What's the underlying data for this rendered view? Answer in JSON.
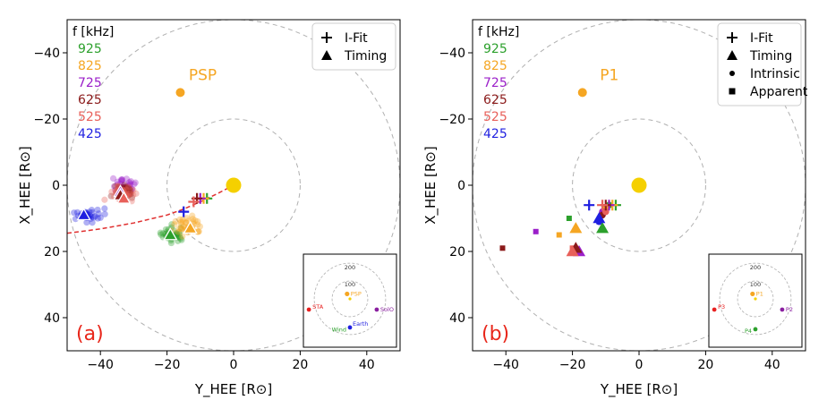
{
  "colors": {
    "f925": "#2ca02c",
    "f825": "#f5a623",
    "f725": "#9b1fc9",
    "f625": "#8b1a1a",
    "f525": "#e8605a",
    "f425": "#1f1fe0",
    "sun": "#f5d000",
    "spacecraft": "#f5a623",
    "fit_line": "#e03030",
    "circle": "#b0b0b0"
  },
  "panels": [
    {
      "panel_label": "(a)",
      "legend": [
        "I-Fit",
        "Timing"
      ],
      "freq_title": "f [kHz]",
      "freq_labels": [
        "925",
        "825",
        "725",
        "625",
        "525",
        "425"
      ],
      "spacecraft_label": "PSP",
      "inset_labels": [
        "200",
        "100",
        "PSP",
        "STA",
        "SolO",
        "Earth",
        "Wind"
      ]
    },
    {
      "panel_label": "(b)",
      "legend": [
        "I-Fit",
        "Timing",
        "Intrinsic",
        "Apparent"
      ],
      "freq_title": "f [kHz]",
      "freq_labels": [
        "925",
        "825",
        "725",
        "625",
        "525",
        "425"
      ],
      "spacecraft_label": "P1",
      "inset_labels": [
        "200",
        "100",
        "P1",
        "P3",
        "P2",
        "P4"
      ]
    }
  ],
  "chart_data": [
    {
      "type": "scatter",
      "title": "",
      "xlabel": "Y_HEE [R⊙]",
      "ylabel": "X_HEE [R⊙]",
      "xlim": [
        -50,
        50
      ],
      "ylim": [
        -50,
        50
      ],
      "y_inverted": true,
      "xticks": [
        -40,
        -20,
        0,
        20,
        40
      ],
      "yticks": [
        -40,
        -20,
        0,
        20,
        40
      ],
      "sun": {
        "x": 0,
        "y": 0
      },
      "spacecraft": {
        "name": "PSP",
        "x": -16,
        "y": -28
      },
      "ifit": [
        {
          "f": 925,
          "x": -8,
          "y": 4
        },
        {
          "f": 825,
          "x": -9,
          "y": 4
        },
        {
          "f": 725,
          "x": -10,
          "y": 4
        },
        {
          "f": 625,
          "x": -11,
          "y": 4
        },
        {
          "f": 525,
          "x": -12,
          "y": 5
        },
        {
          "f": 425,
          "x": -15,
          "y": 8
        }
      ],
      "timing": [
        {
          "f": 925,
          "x": -19,
          "y": 15
        },
        {
          "f": 825,
          "x": -13,
          "y": 13
        },
        {
          "f": 725,
          "x": -34,
          "y": 2
        },
        {
          "f": 625,
          "x": -34,
          "y": 3
        },
        {
          "f": 525,
          "x": -33,
          "y": 4
        },
        {
          "f": 425,
          "x": -45,
          "y": 9
        }
      ],
      "scatter_clouds": [
        {
          "f": 925,
          "cx": -18,
          "cy": 15,
          "sx": 3.5,
          "sy": 2.2
        },
        {
          "f": 825,
          "cx": -14,
          "cy": 12,
          "sx": 4,
          "sy": 2.5
        },
        {
          "f": 725,
          "cx": -33,
          "cy": 0,
          "sx": 3,
          "sy": 2.5
        },
        {
          "f": 625,
          "cx": -33,
          "cy": 2,
          "sx": 3,
          "sy": 2.2
        },
        {
          "f": 525,
          "cx": -33,
          "cy": 3,
          "sx": 3,
          "sy": 2.2
        },
        {
          "f": 425,
          "cx": -44,
          "cy": 9,
          "sx": 3.5,
          "sy": 1.8
        }
      ],
      "fit_curve": [
        [
          -50,
          14.5
        ],
        [
          -40,
          13.2
        ],
        [
          -30,
          11.4
        ],
        [
          -20,
          9
        ],
        [
          -15,
          7.2
        ],
        [
          -10,
          5
        ],
        [
          -5,
          2.6
        ],
        [
          0,
          0
        ]
      ],
      "circles": [
        {
          "cx": 0,
          "cy": 0,
          "r": 50
        },
        {
          "cx": 0,
          "cy": 0,
          "r": 20
        }
      ],
      "inset": {
        "circles": [
          200,
          100
        ],
        "points": [
          {
            "name": "PSP",
            "x": -16,
            "y": -28
          },
          {
            "name": "STA",
            "x": -230,
            "y": 60
          },
          {
            "name": "SolO",
            "x": 150,
            "y": 60
          },
          {
            "name": "Earth",
            "x": 0,
            "y": 160
          },
          {
            "name": "Wind",
            "x": 0,
            "y": 162
          }
        ]
      }
    },
    {
      "type": "scatter",
      "title": "",
      "xlabel": "Y_HEE [R⊙]",
      "ylabel": "X_HEE [R⊙]",
      "xlim": [
        -50,
        50
      ],
      "ylim": [
        -50,
        50
      ],
      "y_inverted": true,
      "xticks": [
        -40,
        -20,
        0,
        20,
        40
      ],
      "yticks": [
        -40,
        -20,
        0,
        20,
        40
      ],
      "sun": {
        "x": 0,
        "y": 0
      },
      "spacecraft": {
        "name": "P1",
        "x": -17,
        "y": -28
      },
      "ifit": [
        {
          "f": 925,
          "x": -7,
          "y": 6
        },
        {
          "f": 825,
          "x": -8,
          "y": 6
        },
        {
          "f": 725,
          "x": -9,
          "y": 6
        },
        {
          "f": 625,
          "x": -10,
          "y": 6
        },
        {
          "f": 525,
          "x": -11,
          "y": 6
        },
        {
          "f": 425,
          "x": -15,
          "y": 6
        }
      ],
      "timing": [
        {
          "f": 925,
          "x": -11,
          "y": 13
        },
        {
          "f": 825,
          "x": -19,
          "y": 13
        },
        {
          "f": 725,
          "x": -18,
          "y": 20
        },
        {
          "f": 625,
          "x": -19,
          "y": 19
        },
        {
          "f": 525,
          "x": -20,
          "y": 20
        },
        {
          "f": 425,
          "x": -12,
          "y": 10
        }
      ],
      "intrinsic": [
        {
          "f": 925,
          "x": -9,
          "y": 6
        },
        {
          "f": 825,
          "x": -10,
          "y": 7
        },
        {
          "f": 725,
          "x": -11,
          "y": 8
        },
        {
          "f": 625,
          "x": -11,
          "y": 9
        },
        {
          "f": 525,
          "x": -10,
          "y": 8
        },
        {
          "f": 425,
          "x": -12,
          "y": 11
        }
      ],
      "apparent": [
        {
          "f": 925,
          "x": -21,
          "y": 10
        },
        {
          "f": 825,
          "x": -24,
          "y": 15
        },
        {
          "f": 725,
          "x": -31,
          "y": 14
        },
        {
          "f": 625,
          "x": -41,
          "y": 19
        },
        {
          "f": 525,
          "x": -20,
          "y": 19
        },
        {
          "f": 425,
          "x": -12,
          "y": 11
        }
      ],
      "circles": [
        {
          "cx": 0,
          "cy": 0,
          "r": 50
        },
        {
          "cx": 0,
          "cy": 0,
          "r": 20
        }
      ],
      "inset": {
        "circles": [
          200,
          100
        ],
        "points": [
          {
            "name": "P1",
            "x": -16,
            "y": -28
          },
          {
            "name": "P3",
            "x": -230,
            "y": 60
          },
          {
            "name": "P2",
            "x": 150,
            "y": 60
          },
          {
            "name": "P4",
            "x": 0,
            "y": 170
          }
        ]
      }
    }
  ]
}
